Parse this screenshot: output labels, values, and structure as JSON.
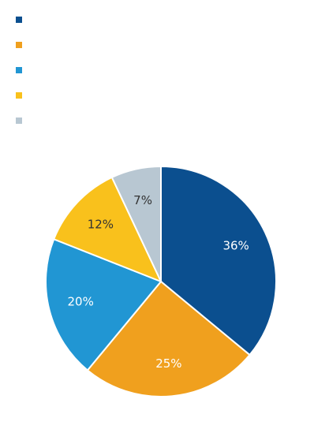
{
  "chart_data": {
    "type": "pie",
    "values": [
      36,
      25,
      20,
      12,
      7
    ],
    "value_labels": [
      "36%",
      "25%",
      "20%",
      "12%",
      "7%"
    ],
    "colors": [
      "#0b4f8f",
      "#f0a01e",
      "#2196d3",
      "#f9c11c",
      "#b8c7d2"
    ],
    "start_angle": 90,
    "direction": "clockwise",
    "legend": "top-left"
  }
}
